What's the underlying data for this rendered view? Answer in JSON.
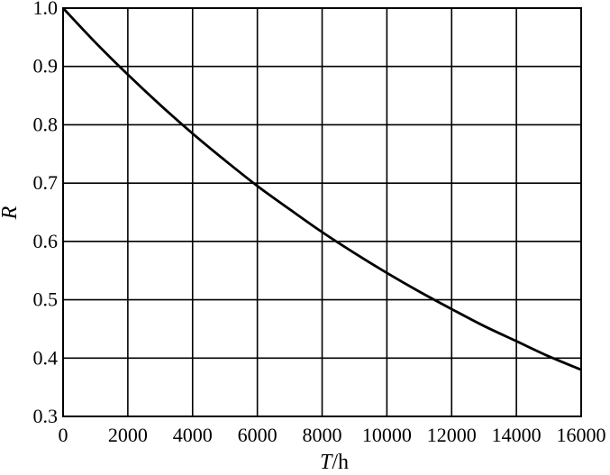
{
  "chart_data": {
    "type": "line",
    "title": "",
    "xlabel_var": "T",
    "xlabel_unit": "/h",
    "ylabel": "R",
    "xlim": [
      0,
      16000
    ],
    "ylim": [
      0.3,
      1.0
    ],
    "grid": true,
    "x_ticks": [
      0,
      2000,
      4000,
      6000,
      8000,
      10000,
      12000,
      14000,
      16000
    ],
    "x_tick_labels": [
      "0",
      "2000",
      "4000",
      "6000",
      "8000",
      "10000",
      "12000",
      "14000",
      "16000"
    ],
    "y_ticks": [
      0.3,
      0.4,
      0.5,
      0.6,
      0.7,
      0.8,
      0.9,
      1.0
    ],
    "y_tick_labels": [
      "0.3",
      "0.4",
      "0.5",
      "0.6",
      "0.7",
      "0.8",
      "0.9",
      "1.0"
    ],
    "series": [
      {
        "x": [
          0,
          1000,
          2000,
          3000,
          4000,
          5000,
          6000,
          7000,
          8000,
          9000,
          10000,
          11000,
          12000,
          13000,
          14000,
          15000,
          16000
        ],
        "y": [
          1.0,
          0.941,
          0.886,
          0.834,
          0.785,
          0.739,
          0.695,
          0.655,
          0.616,
          0.58,
          0.546,
          0.514,
          0.484,
          0.455,
          0.429,
          0.403,
          0.38
        ]
      }
    ]
  }
}
